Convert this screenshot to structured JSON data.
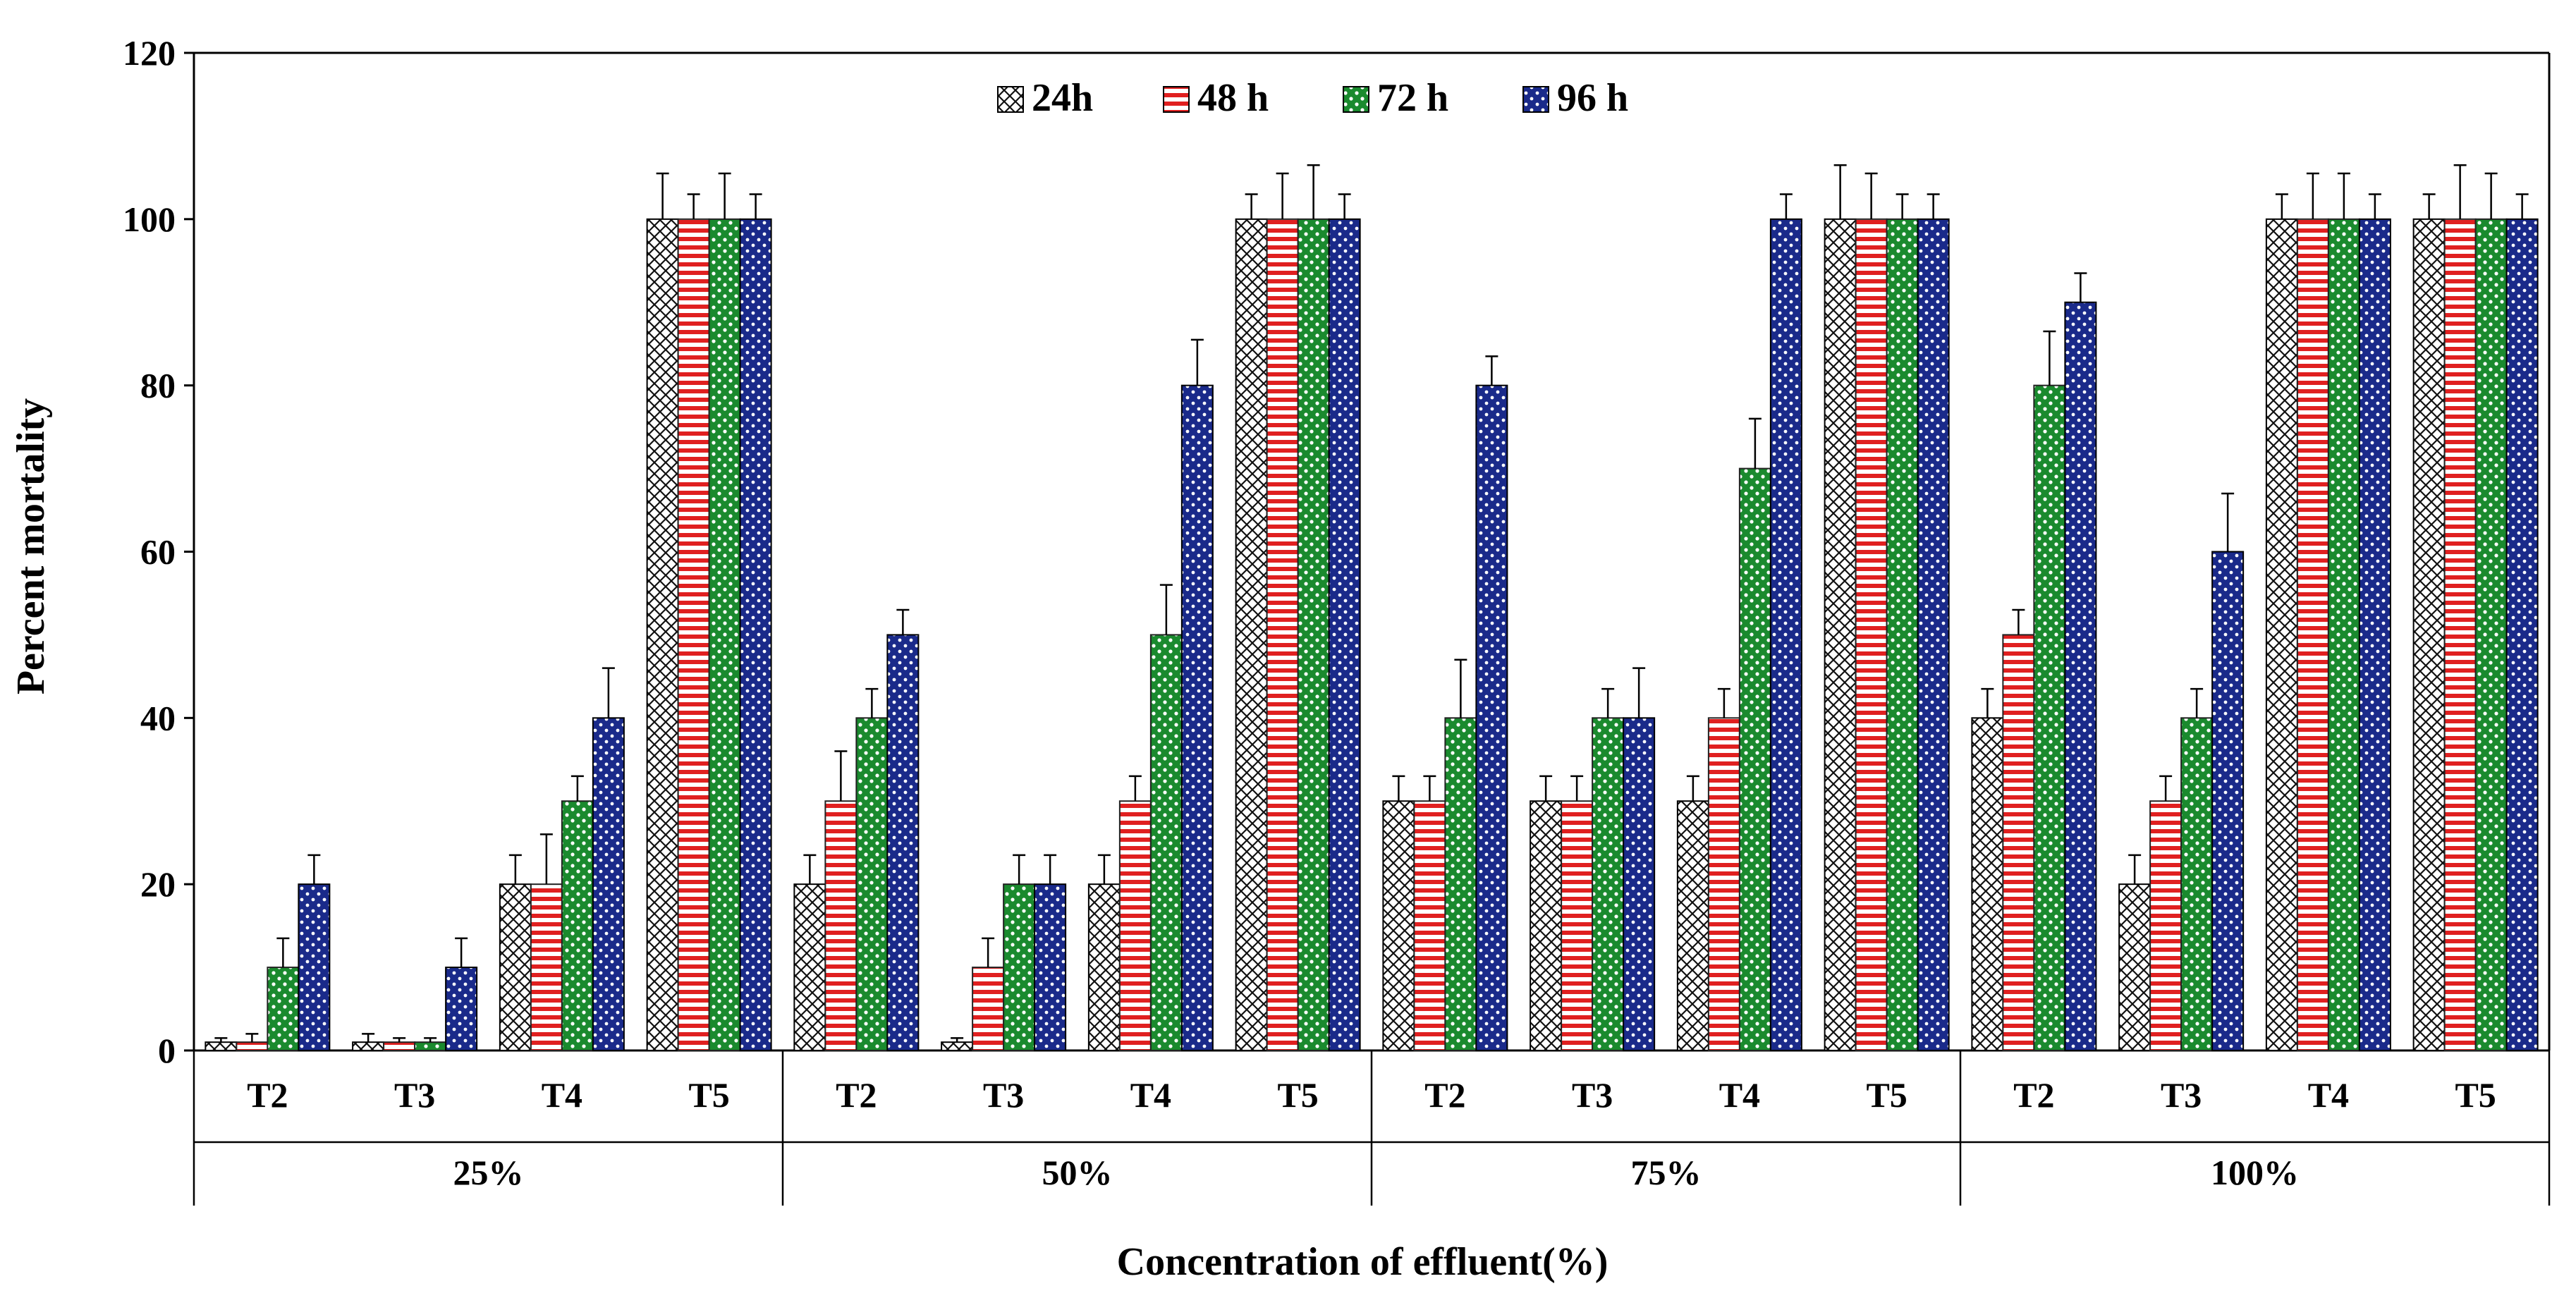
{
  "chart_data": {
    "type": "bar",
    "xlabel": "Concentration of effluent(%)",
    "ylabel": "Percent mortality",
    "ylim": [
      0,
      120
    ],
    "yticks": [
      0,
      20,
      40,
      60,
      80,
      100,
      120
    ],
    "grid": false,
    "legend_position": "top",
    "groups": [
      "25%",
      "50%",
      "75%",
      "100%"
    ],
    "subcategories": [
      "T2",
      "T3",
      "T4",
      "T5"
    ],
    "series": [
      {
        "name": "24h",
        "pattern": "crosshatch",
        "color": "#000000",
        "values": [
          1,
          1,
          20,
          100,
          20,
          1,
          20,
          100,
          30,
          30,
          30,
          100,
          40,
          20,
          100,
          100
        ],
        "errors": [
          0.5,
          1,
          3.5,
          5.5,
          3.5,
          0.5,
          3.5,
          3,
          3,
          3,
          3,
          6.5,
          3.5,
          3.5,
          3,
          3
        ]
      },
      {
        "name": "48 h",
        "pattern": "horizontal-lines",
        "color": "#e02020",
        "values": [
          1,
          1,
          20,
          100,
          30,
          10,
          30,
          100,
          30,
          30,
          40,
          100,
          50,
          30,
          100,
          100
        ],
        "errors": [
          1,
          0.5,
          6,
          3,
          6,
          3.5,
          3,
          5.5,
          3,
          3,
          3.5,
          5.5,
          3,
          3,
          5.5,
          6.5
        ]
      },
      {
        "name": "72 h",
        "pattern": "dots",
        "color": "#1a8a2e",
        "values": [
          10,
          1,
          30,
          100,
          40,
          20,
          50,
          100,
          40,
          40,
          70,
          100,
          80,
          40,
          100,
          100
        ],
        "errors": [
          3.5,
          0.5,
          3,
          5.5,
          3.5,
          3.5,
          6,
          6.5,
          7,
          3.5,
          6,
          3,
          6.5,
          3.5,
          5.5,
          5.5
        ]
      },
      {
        "name": "96 h",
        "pattern": "dots",
        "color": "#1a2a8a",
        "values": [
          20,
          10,
          40,
          100,
          50,
          20,
          80,
          100,
          80,
          40,
          100,
          100,
          90,
          60,
          100,
          100
        ],
        "errors": [
          3.5,
          3.5,
          6,
          3,
          3,
          3.5,
          5.5,
          3,
          3.5,
          6,
          3,
          3,
          3.5,
          7,
          3,
          3
        ]
      }
    ]
  }
}
